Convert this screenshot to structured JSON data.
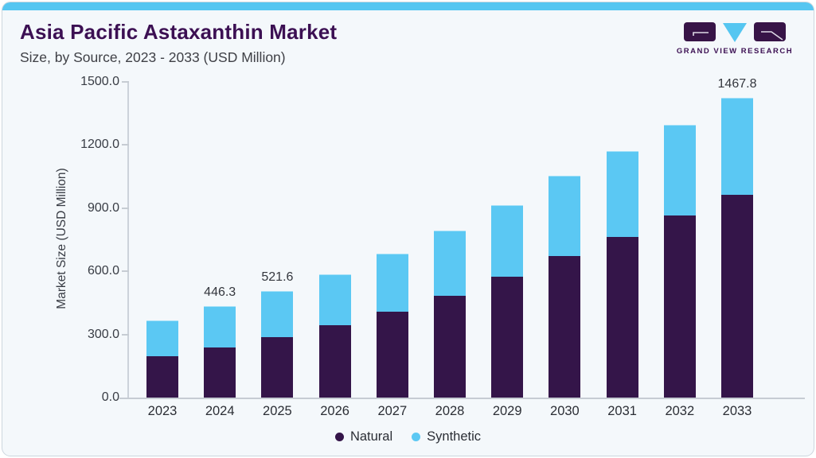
{
  "header": {
    "title": "Asia Pacific Astaxanthin Market",
    "subtitle": "Size, by Source, 2023 - 2033 (USD Million)",
    "logo_text": "GRAND VIEW RESEARCH"
  },
  "colors": {
    "accent_strip": "#55c6f1",
    "title_purple": "#3c1053",
    "card_background": "#f4f8fb",
    "axis_line": "#c6ccd3",
    "natural": "#341549",
    "synthetic": "#5bc8f3"
  },
  "chart_data": {
    "type": "bar",
    "stacked": true,
    "title": "Asia Pacific Astaxanthin Market Size, by Source, 2023 - 2033 (USD Million)",
    "categories": [
      "2023",
      "2024",
      "2025",
      "2026",
      "2027",
      "2028",
      "2029",
      "2030",
      "2031",
      "2032",
      "2033"
    ],
    "series": [
      {
        "name": "Natural",
        "color": "#341549",
        "values": [
          203.7,
          245.4,
          294.9,
          353.3,
          420.7,
          498.6,
          592.0,
          693.3,
          786.8,
          891.9,
          993.2
        ]
      },
      {
        "name": "Synthetic",
        "color": "#5bc8f3",
        "values": [
          173.0,
          200.9,
          226.7,
          249.3,
          284.3,
          319.4,
          350.6,
          393.4,
          420.7,
          444.0,
          474.6
        ]
      }
    ],
    "totals": [
      376.7,
      446.3,
      521.6,
      602.6,
      705.0,
      818.0,
      942.6,
      1086.7,
      1207.5,
      1335.9,
      1467.8
    ],
    "bar_total_labels": [
      "",
      "446.3",
      "521.6",
      "",
      "",
      "",
      "",
      "",
      "",
      "",
      "1467.8"
    ],
    "xlabel": "",
    "ylabel": "Market Size (USD Million)",
    "ylim": [
      0,
      1500
    ],
    "ytick_labels": [
      "0.0",
      "300.0",
      "600.0",
      "900.0",
      "1200.0",
      "1500.0"
    ],
    "grid": false,
    "legend_position": "bottom",
    "legend": [
      "Natural",
      "Synthetic"
    ]
  }
}
